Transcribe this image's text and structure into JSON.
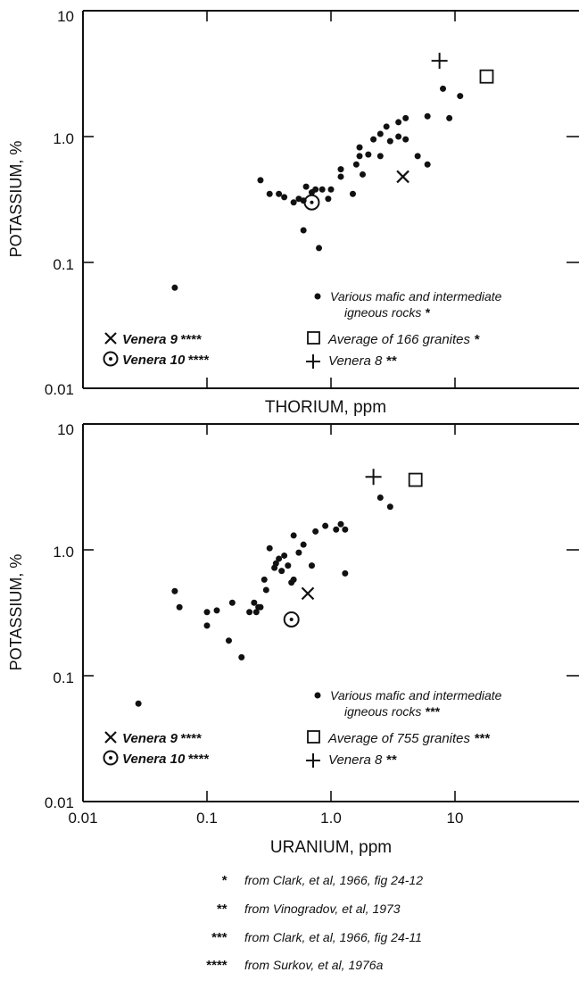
{
  "chart_data": [
    {
      "type": "scatter",
      "xlabel": "THORIUM, ppm",
      "ylabel": "POTASSIUM, %",
      "xscale": "log",
      "yscale": "log",
      "xlim": [
        0.01,
        100
      ],
      "ylim": [
        0.01,
        10
      ],
      "x_tick_labels": [],
      "y_tick_labels": [
        "10",
        "1.0",
        "0.1",
        "0.01"
      ],
      "legend": [
        {
          "marker": "dot",
          "label": "Various mafic and intermediate",
          "label2": "igneous rocks",
          "stars": "*"
        },
        {
          "marker": "x",
          "label": "Venera 9",
          "stars": "****"
        },
        {
          "marker": "square",
          "label": "Average of 166 granites",
          "stars": "*"
        },
        {
          "marker": "circle-dot",
          "label": "Venera 10",
          "stars": "****"
        },
        {
          "marker": "plus",
          "label": "Venera 8",
          "stars": "**"
        }
      ],
      "series": [
        {
          "name": "Various mafic and intermediate igneous rocks",
          "marker": "dot",
          "x": [
            0.055,
            0.27,
            0.32,
            0.38,
            0.42,
            0.5,
            0.55,
            0.6,
            0.63,
            0.7,
            0.75,
            0.85,
            0.95,
            1.0,
            1.2,
            1.2,
            1.5,
            1.6,
            1.7,
            1.7,
            1.8,
            2.0,
            2.2,
            2.5,
            2.5,
            2.8,
            3.0,
            3.5,
            3.5,
            4.0,
            4.0,
            5.0,
            6.0,
            6.0,
            8.0,
            9.0,
            11.0,
            0.6,
            0.8
          ],
          "y": [
            0.063,
            0.45,
            0.35,
            0.35,
            0.33,
            0.3,
            0.32,
            0.31,
            0.4,
            0.36,
            0.38,
            0.38,
            0.32,
            0.38,
            0.55,
            0.48,
            0.35,
            0.6,
            0.7,
            0.82,
            0.5,
            0.72,
            0.95,
            1.05,
            0.7,
            1.2,
            0.92,
            1.3,
            1.0,
            1.4,
            0.95,
            0.7,
            1.45,
            0.6,
            2.4,
            1.4,
            2.1,
            0.18,
            0.13
          ]
        },
        {
          "name": "Venera 9",
          "marker": "x",
          "x": [
            3.8
          ],
          "y": [
            0.48
          ]
        },
        {
          "name": "Venera 10",
          "marker": "circle-dot",
          "x": [
            0.7
          ],
          "y": [
            0.3
          ]
        },
        {
          "name": "Average of 166 granites",
          "marker": "square",
          "x": [
            18.0
          ],
          "y": [
            3.0
          ]
        },
        {
          "name": "Venera 8",
          "marker": "plus",
          "x": [
            7.5
          ],
          "y": [
            4.0
          ]
        }
      ]
    },
    {
      "type": "scatter",
      "xlabel": "URANIUM, ppm",
      "ylabel": "POTASSIUM, %",
      "xscale": "log",
      "yscale": "log",
      "xlim": [
        0.01,
        100
      ],
      "ylim": [
        0.01,
        10
      ],
      "x_tick_labels": [
        "0.01",
        "0.1",
        "1.0",
        "10"
      ],
      "y_tick_labels": [
        "10",
        "1.0",
        "0.1",
        "0.01"
      ],
      "legend": [
        {
          "marker": "dot",
          "label": "Various mafic and intermediate",
          "label2": "igneous rocks",
          "stars": "***"
        },
        {
          "marker": "x",
          "label": "Venera 9",
          "stars": "****"
        },
        {
          "marker": "square",
          "label": "Average of 755 granites",
          "stars": "***"
        },
        {
          "marker": "circle-dot",
          "label": "Venera 10",
          "stars": "****"
        },
        {
          "marker": "plus",
          "label": "Venera 8",
          "stars": "**"
        }
      ],
      "series": [
        {
          "name": "Various mafic and intermediate igneous rocks",
          "marker": "dot",
          "x": [
            0.028,
            0.055,
            0.06,
            0.1,
            0.1,
            0.12,
            0.15,
            0.16,
            0.19,
            0.22,
            0.24,
            0.25,
            0.26,
            0.27,
            0.29,
            0.3,
            0.32,
            0.35,
            0.36,
            0.38,
            0.4,
            0.42,
            0.45,
            0.48,
            0.5,
            0.5,
            0.55,
            0.6,
            0.7,
            0.75,
            0.9,
            1.1,
            1.2,
            1.3,
            1.3,
            2.5,
            3.0
          ],
          "y": [
            0.06,
            0.47,
            0.35,
            0.25,
            0.32,
            0.33,
            0.19,
            0.38,
            0.14,
            0.32,
            0.38,
            0.32,
            0.35,
            0.35,
            0.58,
            0.48,
            1.03,
            0.72,
            0.78,
            0.85,
            0.68,
            0.9,
            0.75,
            0.55,
            1.3,
            0.58,
            0.95,
            1.1,
            0.75,
            1.4,
            1.55,
            1.45,
            1.6,
            1.45,
            0.65,
            2.6,
            2.2
          ]
        },
        {
          "name": "Venera 9",
          "marker": "x",
          "x": [
            0.65
          ],
          "y": [
            0.45
          ]
        },
        {
          "name": "Venera 10",
          "marker": "circle-dot",
          "x": [
            0.48
          ],
          "y": [
            0.28
          ]
        },
        {
          "name": "Average of 755 granites",
          "marker": "square",
          "x": [
            4.8
          ],
          "y": [
            3.6
          ]
        },
        {
          "name": "Venera 8",
          "marker": "plus",
          "x": [
            2.2
          ],
          "y": [
            3.8
          ]
        }
      ]
    }
  ],
  "footnotes": [
    {
      "stars": "*",
      "text": "from Clark, et al, 1966, fig 24-12"
    },
    {
      "stars": "**",
      "text": "from Vinogradov, et al, 1973"
    },
    {
      "stars": "***",
      "text": "from Clark, et al, 1966, fig 24-11"
    },
    {
      "stars": "****",
      "text": "from Surkov, et al, 1976a"
    }
  ]
}
